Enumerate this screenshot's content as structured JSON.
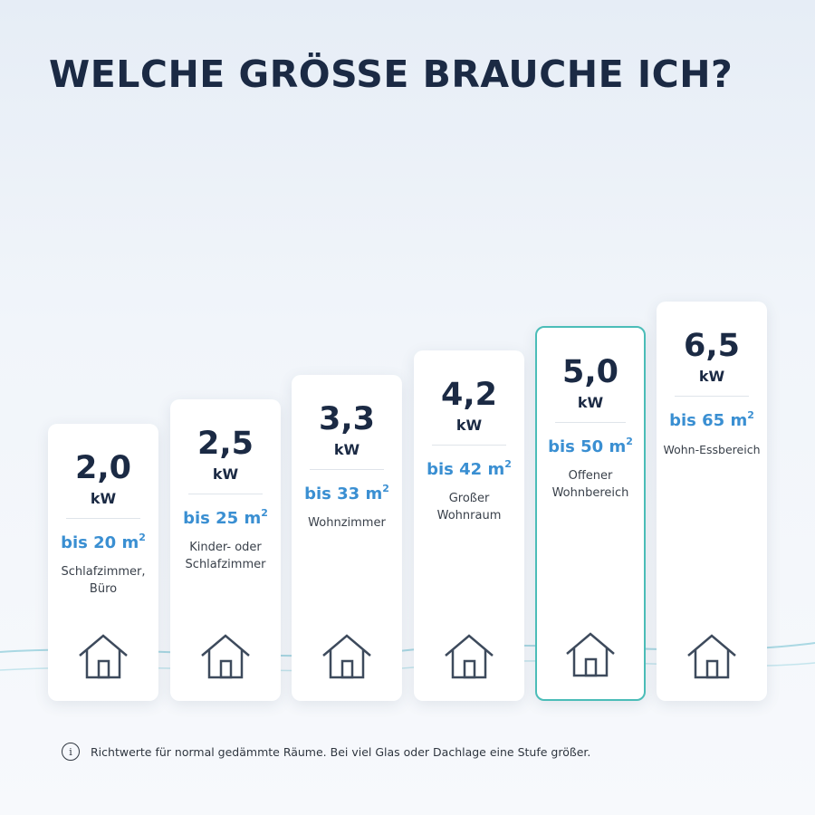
{
  "title": "WELCHE GRÖSSE BRAUCHE ICH?",
  "unit": "kW",
  "area_prefix": "bis",
  "area_unit": "m",
  "area_exp": "2",
  "accent_color": "#3a8fd2",
  "highlight_color": "#4bbdb8",
  "cards": [
    {
      "kw": "2,0",
      "area": "20",
      "room": "Schlafzimmer, Büro",
      "icon": "house-icon"
    },
    {
      "kw": "2,5",
      "area": "25",
      "room": "Kinder- oder Schlafzimmer",
      "icon": "house-icon"
    },
    {
      "kw": "3,3",
      "area": "33",
      "room": "Wohnzimmer",
      "icon": "house-icon"
    },
    {
      "kw": "4,2",
      "area": "42",
      "room": "Großer Wohnraum",
      "icon": "house-icon"
    },
    {
      "kw": "5,0",
      "area": "50",
      "room": "Offener Wohnbereich",
      "icon": "house-icon",
      "highlighted": true
    },
    {
      "kw": "6,5",
      "area": "65",
      "room": "Wohn-Essbereich",
      "icon": "house-icon"
    }
  ],
  "note": {
    "icon": "info-icon",
    "text": "Richtwerte für normal gedämmte Räume. Bei viel Glas oder Dachlage eine Stufe größer."
  }
}
